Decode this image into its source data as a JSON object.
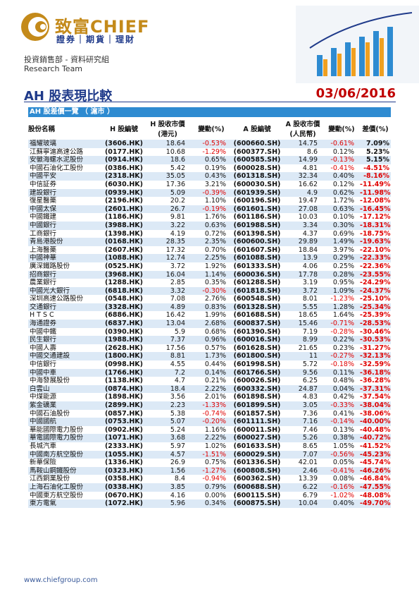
{
  "header": {
    "brand": "致富CHIEF",
    "brand_sub": "證券｜期貨｜理財",
    "dept": "投資銷售部 - 資料研究組",
    "dept_en": "Research Team"
  },
  "page": {
    "title": "AH 股表現比較",
    "date": "03/06/2016"
  },
  "table": {
    "caption": "AH 股差價一覽 （ 滬市 ）",
    "columns": [
      "股份名稱",
      "H 股編號",
      "H 股收市價\n(港元)",
      "變動(%)",
      "A 股編號",
      "A 股收市價\n(人民幣)",
      "變動(%)",
      "差價(%)"
    ],
    "rows": [
      [
        "福耀玻璃",
        "(3606.HK)",
        "18.64",
        "-0.53%",
        "(600660.SH)",
        "14.75",
        "-0.61%",
        "7.09%"
      ],
      [
        "江蘇寧滬高速公路",
        "(0177.HK)",
        "10.68",
        "-1.29%",
        "(600377.SH)",
        "8.6",
        "0.12%",
        "5.23%"
      ],
      [
        "安徽海螺水泥股份",
        "(0914.HK)",
        "18.6",
        "0.65%",
        "(600585.SH)",
        "14.99",
        "-0.13%",
        "5.15%"
      ],
      [
        "中國石油化工股份",
        "(0386.HK)",
        "5.42",
        "0.19%",
        "(600028.SH)",
        "4.81",
        "-0.41%",
        "-4.51%"
      ],
      [
        "中國平安",
        "(2318.HK)",
        "35.05",
        "0.43%",
        "(601318.SH)",
        "32.34",
        "0.40%",
        "-8.16%"
      ],
      [
        "中信証券",
        "(6030.HK)",
        "17.36",
        "3.21%",
        "(600030.SH)",
        "16.62",
        "0.12%",
        "-11.49%"
      ],
      [
        "建設銀行",
        "(0939.HK)",
        "5.09",
        "-0.39%",
        "(601939.SH)",
        "4.9",
        "0.62%",
        "-11.98%"
      ],
      [
        "復星醫藥",
        "(2196.HK)",
        "20.2",
        "1.10%",
        "(600196.SH)",
        "19.47",
        "1.72%",
        "-12.08%"
      ],
      [
        "中國太保",
        "(2601.HK)",
        "26.7",
        "-0.19%",
        "(601601.SH)",
        "27.08",
        "0.63%",
        "-16.45%"
      ],
      [
        "中國鐵建",
        "(1186.HK)",
        "9.81",
        "1.76%",
        "(601186.SH)",
        "10.03",
        "0.10%",
        "-17.12%"
      ],
      [
        "中國銀行",
        "(3988.HK)",
        "3.22",
        "0.63%",
        "(601988.SH)",
        "3.34",
        "0.30%",
        "-18.31%"
      ],
      [
        "工商銀行",
        "(1398.HK)",
        "4.19",
        "0.72%",
        "(601398.SH)",
        "4.37",
        "0.69%",
        "-18.75%"
      ],
      [
        "青島港股份",
        "(0168.HK)",
        "28.35",
        "2.35%",
        "(600600.SH)",
        "29.89",
        "1.49%",
        "-19.63%"
      ],
      [
        "上海醫藥",
        "(2607.HK)",
        "17.32",
        "0.70%",
        "(601607.SH)",
        "18.84",
        "3.97%",
        "-22.10%"
      ],
      [
        "中國神華",
        "(1088.HK)",
        "12.74",
        "2.25%",
        "(601088.SH)",
        "13.9",
        "0.29%",
        "-22.33%"
      ],
      [
        "廣深鐵路股份",
        "(0525.HK)",
        "3.72",
        "1.92%",
        "(601333.SH)",
        "4.06",
        "0.25%",
        "-22.36%"
      ],
      [
        "招商銀行",
        "(3968.HK)",
        "16.04",
        "1.14%",
        "(600036.SH)",
        "17.78",
        "0.28%",
        "-23.55%"
      ],
      [
        "農業銀行",
        "(1288.HK)",
        "2.85",
        "0.35%",
        "(601288.SH)",
        "3.19",
        "0.95%",
        "-24.29%"
      ],
      [
        "中國光大銀行",
        "(6818.HK)",
        "3.32",
        "-0.30%",
        "(601818.SH)",
        "3.72",
        "1.09%",
        "-24.37%"
      ],
      [
        "深圳高速公路股份",
        "(0548.HK)",
        "7.08",
        "2.76%",
        "(600548.SH)",
        "8.01",
        "-1.23%",
        "-25.10%"
      ],
      [
        "交通銀行",
        "(3328.HK)",
        "4.89",
        "0.83%",
        "(601328.SH)",
        "5.55",
        "1.28%",
        "-25.34%"
      ],
      [
        "H T S C",
        "(6886.HK)",
        "16.42",
        "1.99%",
        "(601688.SH)",
        "18.65",
        "1.64%",
        "-25.39%"
      ],
      [
        "海通證券",
        "(6837.HK)",
        "13.04",
        "2.68%",
        "(600837.SH)",
        "15.46",
        "-0.71%",
        "-28.53%"
      ],
      [
        "中國中鐵",
        "(0390.HK)",
        "5.9",
        "0.68%",
        "(601390.SH)",
        "7.19",
        "-0.28%",
        "-30.46%"
      ],
      [
        "民生銀行",
        "(1988.HK)",
        "7.37",
        "0.96%",
        "(600016.SH)",
        "8.99",
        "0.22%",
        "-30.53%"
      ],
      [
        "中國人壽",
        "(2628.HK)",
        "17.56",
        "0.57%",
        "(601628.SH)",
        "21.65",
        "0.23%",
        "-31.27%"
      ],
      [
        "中國交通建設",
        "(1800.HK)",
        "8.81",
        "1.73%",
        "(601800.SH)",
        "11",
        "-0.27%",
        "-32.13%"
      ],
      [
        "中信銀行",
        "(0998.HK)",
        "4.55",
        "0.44%",
        "(601998.SH)",
        "5.72",
        "-0.18%",
        "-32.59%"
      ],
      [
        "中國中車",
        "(1766.HK)",
        "7.2",
        "0.14%",
        "(601766.SH)",
        "9.56",
        "0.11%",
        "-36.18%"
      ],
      [
        "中海發展股份",
        "(1138.HK)",
        "4.7",
        "0.21%",
        "(600026.SH)",
        "6.25",
        "0.48%",
        "-36.28%"
      ],
      [
        "白雲山",
        "(0874.HK)",
        "18.4",
        "2.22%",
        "(600332.SH)",
        "24.87",
        "0.04%",
        "-37.31%"
      ],
      [
        "中煤能源",
        "(1898.HK)",
        "3.56",
        "2.01%",
        "(601898.SH)",
        "4.83",
        "0.42%",
        "-37.54%"
      ],
      [
        "紫金礦業",
        "(2899.HK)",
        "2.23",
        "-1.33%",
        "(601899.SH)",
        "3.05",
        "-0.33%",
        "-38.04%"
      ],
      [
        "中國石油股份",
        "(0857.HK)",
        "5.38",
        "-0.74%",
        "(601857.SH)",
        "7.36",
        "0.41%",
        "-38.06%"
      ],
      [
        "中國國航",
        "(0753.HK)",
        "5.07",
        "-0.20%",
        "(601111.SH)",
        "7.16",
        "-0.14%",
        "-40.00%"
      ],
      [
        "華能國際電力股份",
        "(0902.HK)",
        "5.24",
        "1.16%",
        "(600011.SH)",
        "7.46",
        "0.13%",
        "-40.48%"
      ],
      [
        "華電國際電力股份",
        "(1071.HK)",
        "3.68",
        "2.22%",
        "(600027.SH)",
        "5.26",
        "0.38%",
        "-40.72%"
      ],
      [
        "長城汽車",
        "(2333.HK)",
        "5.97",
        "1.02%",
        "(601633.SH)",
        "8.65",
        "1.05%",
        "-41.52%"
      ],
      [
        "中國南方航空股份",
        "(1055.HK)",
        "4.57",
        "-1.51%",
        "(600029.SH)",
        "7.07",
        "-0.56%",
        "-45.23%"
      ],
      [
        "新華保險",
        "(1336.HK)",
        "26.9",
        "0.75%",
        "(601336.SH)",
        "42.01",
        "0.05%",
        "-45.74%"
      ],
      [
        "馬鞍山鋼鐵股份",
        "(0323.HK)",
        "1.56",
        "-1.27%",
        "(600808.SH)",
        "2.46",
        "-0.41%",
        "-46.26%"
      ],
      [
        "江西銅業股份",
        "(0358.HK)",
        "8.4",
        "-0.94%",
        "(600362.SH)",
        "13.39",
        "0.08%",
        "-46.84%"
      ],
      [
        "上海石油化工股份",
        "(0338.HK)",
        "3.85",
        "0.79%",
        "(600688.SH)",
        "6.22",
        "-0.16%",
        "-47.55%"
      ],
      [
        "中國東方航空股份",
        "(0670.HK)",
        "4.16",
        "0.00%",
        "(600115.SH)",
        "6.79",
        "-1.02%",
        "-48.08%"
      ],
      [
        "東方電氣",
        "(1072.HK)",
        "5.96",
        "0.34%",
        "(600875.SH)",
        "10.04",
        "0.40%",
        "-49.70%"
      ]
    ]
  },
  "footer": {
    "url": "www.chiefgroup.com"
  },
  "colors": {
    "brand_gold": "#c48a1a",
    "brand_blue": "#1f3a8a",
    "table_header": "#2e8bd1",
    "row_band": "#dce9f6",
    "negative": "#e00000"
  }
}
